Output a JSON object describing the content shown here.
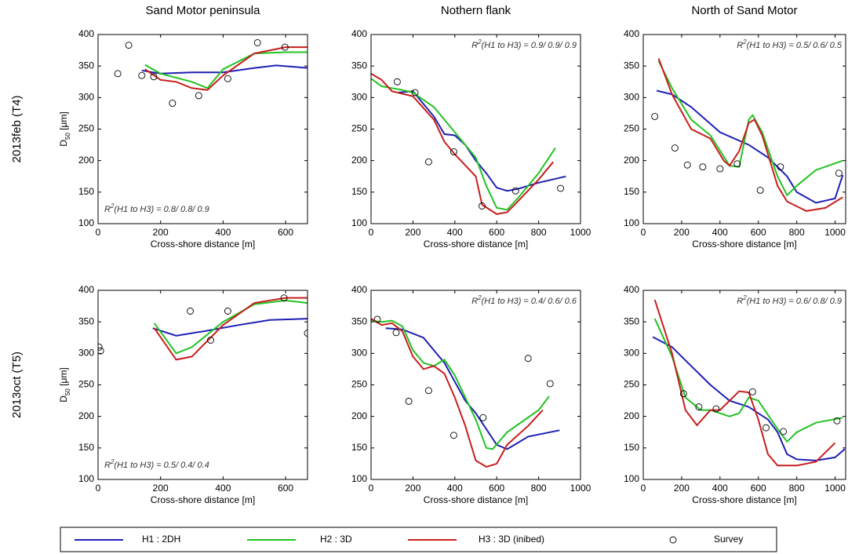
{
  "chart_data": [
    {
      "type": "line",
      "title": "Sand Motor peninsula",
      "row_label": "2013feb (T4)",
      "ylabel": [
        "D",
        "50",
        " [μm]"
      ],
      "xlabel": "Cross-shore distance [m]",
      "annotation": [
        "R",
        "2",
        "(H1 to H3) = 0.8/ 0.8/ 0.9"
      ],
      "annotation_corner": "lower left",
      "xlim": [
        0,
        670
      ],
      "ylim": [
        100,
        400
      ],
      "xticks": [
        0,
        200,
        400,
        600
      ],
      "yticks": [
        100,
        150,
        200,
        250,
        300,
        350,
        400
      ],
      "series": [
        {
          "name": "H1 : 2DH",
          "color": "#1f1fb4",
          "x": [
            140,
            200,
            300,
            400,
            500,
            570,
            670
          ],
          "values": [
            343,
            338,
            340,
            340,
            347,
            351,
            347
          ]
        },
        {
          "name": "H2 : 3D",
          "color": "#22c322",
          "x": [
            150,
            200,
            300,
            350,
            400,
            500,
            600,
            670
          ],
          "values": [
            352,
            338,
            325,
            315,
            345,
            370,
            372,
            372
          ]
        },
        {
          "name": "H3 : 3D (inibed)",
          "color": "#c81e1e",
          "x": [
            150,
            200,
            250,
            300,
            350,
            400,
            500,
            600,
            670
          ],
          "values": [
            345,
            328,
            325,
            315,
            312,
            335,
            370,
            380,
            380
          ]
        },
        {
          "name": "Survey",
          "type": "scatter",
          "color": "#000000",
          "x": [
            63,
            98,
            140,
            178,
            238,
            322,
            415,
            510,
            598
          ],
          "values": [
            338,
            383,
            335,
            333,
            291,
            303,
            330,
            387,
            380
          ]
        }
      ]
    },
    {
      "type": "line",
      "title": "Nothern flank",
      "xlabel": "Cross-shore distance [m]",
      "annotation": [
        "R",
        "2",
        "(H1 to H3) = 0.9/ 0.9/ 0.9"
      ],
      "annotation_corner": "upper right",
      "xlim": [
        0,
        1000
      ],
      "ylim": [
        100,
        400
      ],
      "xticks": [
        0,
        200,
        400,
        600,
        800,
        1000
      ],
      "yticks": [
        100,
        150,
        200,
        250,
        300,
        350,
        400
      ],
      "series": [
        {
          "color": "#1f1fb4",
          "x": [
            130,
            200,
            300,
            350,
            400,
            450,
            500,
            550,
            600,
            650,
            700,
            800,
            930
          ],
          "values": [
            308,
            310,
            270,
            242,
            240,
            225,
            200,
            180,
            157,
            152,
            155,
            165,
            175
          ]
        },
        {
          "color": "#22c322",
          "x": [
            0,
            50,
            150,
            200,
            300,
            400,
            500,
            550,
            600,
            650,
            700,
            800,
            880
          ],
          "values": [
            330,
            318,
            312,
            308,
            285,
            245,
            205,
            160,
            125,
            122,
            140,
            180,
            220
          ]
        },
        {
          "color": "#c81e1e",
          "x": [
            0,
            50,
            100,
            200,
            300,
            350,
            400,
            500,
            530,
            600,
            650,
            700,
            800,
            870
          ],
          "values": [
            338,
            328,
            310,
            302,
            265,
            230,
            210,
            175,
            130,
            115,
            118,
            135,
            170,
            198
          ]
        },
        {
          "type": "scatter",
          "color": "#000000",
          "x": [
            125,
            210,
            275,
            395,
            530,
            690,
            905
          ],
          "values": [
            325,
            308,
            198,
            214,
            128,
            152,
            156
          ]
        }
      ]
    },
    {
      "type": "line",
      "title": "North of Sand Motor",
      "xlabel": "Cross-shore distance [m]",
      "annotation": [
        "R",
        "2",
        "(H1 to H3) = 0.5/ 0.6/ 0.5"
      ],
      "annotation_corner": "upper right",
      "xlim": [
        0,
        1055
      ],
      "ylim": [
        100,
        400
      ],
      "xticks": [
        0,
        200,
        400,
        600,
        800,
        1000
      ],
      "yticks": [
        100,
        150,
        200,
        250,
        300,
        350,
        400
      ],
      "series": [
        {
          "color": "#1f1fb4",
          "x": [
            70,
            150,
            250,
            400,
            550,
            650,
            750,
            800,
            900,
            1000,
            1040
          ],
          "values": [
            311,
            305,
            285,
            245,
            225,
            205,
            175,
            150,
            133,
            140,
            177
          ]
        },
        {
          "color": "#22c322",
          "x": [
            80,
            150,
            250,
            350,
            450,
            500,
            550,
            570,
            620,
            700,
            750,
            800,
            900,
            1040
          ],
          "values": [
            358,
            315,
            265,
            240,
            192,
            190,
            265,
            272,
            245,
            175,
            145,
            160,
            185,
            200
          ]
        },
        {
          "color": "#c81e1e",
          "x": [
            80,
            150,
            250,
            350,
            420,
            450,
            500,
            550,
            580,
            620,
            700,
            750,
            850,
            950,
            1040
          ],
          "values": [
            362,
            305,
            250,
            235,
            200,
            192,
            215,
            260,
            265,
            240,
            160,
            135,
            120,
            125,
            142
          ]
        },
        {
          "type": "scatter",
          "color": "#000000",
          "x": [
            60,
            165,
            230,
            310,
            400,
            490,
            610,
            715,
            1020
          ],
          "values": [
            270,
            220,
            193,
            190,
            187,
            195,
            153,
            190,
            180
          ]
        }
      ]
    },
    {
      "type": "line",
      "row_label": "2013oct (T5)",
      "ylabel": [
        "D",
        "50",
        " [μm]"
      ],
      "xlabel": "Cross-shore distance [m]",
      "annotation": [
        "R",
        "2",
        "(H1 to H3) = 0.5/ 0.4/ 0.4"
      ],
      "annotation_corner": "lower left",
      "xlim": [
        0,
        670
      ],
      "ylim": [
        100,
        400
      ],
      "xticks": [
        0,
        200,
        400,
        600
      ],
      "yticks": [
        100,
        150,
        200,
        250,
        300,
        350,
        400
      ],
      "series": [
        {
          "color": "#1f1fb4",
          "x": [
            175,
            250,
            350,
            450,
            550,
            670
          ],
          "values": [
            340,
            328,
            336,
            345,
            353,
            355
          ]
        },
        {
          "color": "#22c322",
          "x": [
            180,
            250,
            300,
            400,
            500,
            600,
            670
          ],
          "values": [
            348,
            300,
            310,
            350,
            378,
            384,
            380
          ]
        },
        {
          "color": "#c81e1e",
          "x": [
            180,
            250,
            300,
            400,
            500,
            600,
            670
          ],
          "values": [
            340,
            290,
            295,
            345,
            380,
            388,
            388
          ]
        },
        {
          "type": "scatter",
          "color": "#000000",
          "x": [
            3,
            8,
            295,
            360,
            415,
            595,
            670
          ],
          "values": [
            310,
            304,
            367,
            321,
            367,
            388,
            332
          ]
        }
      ]
    },
    {
      "type": "line",
      "xlabel": "Cross-shore distance [m]",
      "annotation": [
        "R",
        "2",
        "(H1 to H3) = 0.4/ 0.6/ 0.6"
      ],
      "annotation_corner": "upper right",
      "xlim": [
        0,
        1000
      ],
      "ylim": [
        100,
        400
      ],
      "xticks": [
        0,
        200,
        400,
        600,
        800,
        1000
      ],
      "yticks": [
        100,
        150,
        200,
        250,
        300,
        350,
        400
      ],
      "series": [
        {
          "color": "#1f1fb4",
          "x": [
            70,
            150,
            250,
            350,
            450,
            500,
            600,
            650,
            750,
            900
          ],
          "values": [
            340,
            338,
            325,
            285,
            225,
            205,
            155,
            148,
            168,
            178
          ]
        },
        {
          "color": "#22c322",
          "x": [
            0,
            50,
            100,
            150,
            200,
            250,
            300,
            350,
            400,
            500,
            550,
            580,
            650,
            800,
            850
          ],
          "values": [
            352,
            350,
            352,
            343,
            305,
            285,
            280,
            290,
            265,
            195,
            150,
            148,
            175,
            210,
            232
          ]
        },
        {
          "color": "#c81e1e",
          "x": [
            0,
            50,
            100,
            150,
            200,
            250,
            300,
            350,
            400,
            450,
            500,
            550,
            600,
            650,
            750,
            820
          ],
          "values": [
            355,
            345,
            348,
            335,
            295,
            275,
            280,
            268,
            230,
            185,
            130,
            120,
            125,
            155,
            185,
            210
          ]
        },
        {
          "type": "scatter",
          "color": "#000000",
          "x": [
            30,
            120,
            180,
            275,
            395,
            535,
            750,
            855
          ],
          "values": [
            354,
            333,
            224,
            241,
            170,
            198,
            292,
            252
          ]
        }
      ]
    },
    {
      "type": "line",
      "xlabel": "Cross-shore distance [m]",
      "annotation": [
        "R",
        "2",
        "(H1 to H3) = 0.6/ 0.8/ 0.9"
      ],
      "annotation_corner": "upper right",
      "xlim": [
        0,
        1055
      ],
      "ylim": [
        100,
        400
      ],
      "xticks": [
        0,
        200,
        400,
        600,
        800,
        1000
      ],
      "yticks": [
        100,
        150,
        200,
        250,
        300,
        350,
        400
      ],
      "series": [
        {
          "color": "#1f1fb4",
          "x": [
            50,
            150,
            250,
            350,
            450,
            550,
            650,
            700,
            750,
            800,
            900,
            1000,
            1050
          ],
          "values": [
            326,
            310,
            280,
            250,
            225,
            215,
            195,
            175,
            140,
            132,
            130,
            135,
            148
          ]
        },
        {
          "color": "#22c322",
          "x": [
            60,
            150,
            220,
            300,
            350,
            400,
            450,
            500,
            550,
            600,
            700,
            750,
            800,
            900,
            1040
          ],
          "values": [
            355,
            295,
            230,
            210,
            210,
            205,
            200,
            205,
            230,
            225,
            180,
            160,
            175,
            190,
            198
          ]
        },
        {
          "color": "#c81e1e",
          "x": [
            60,
            150,
            220,
            280,
            350,
            400,
            450,
            500,
            550,
            600,
            650,
            700,
            800,
            900,
            1000
          ],
          "values": [
            385,
            300,
            210,
            186,
            210,
            210,
            225,
            240,
            238,
            195,
            140,
            122,
            122,
            128,
            158
          ]
        },
        {
          "type": "scatter",
          "color": "#000000",
          "x": [
            210,
            290,
            380,
            570,
            640,
            730,
            1010
          ],
          "values": [
            236,
            215,
            212,
            239,
            182,
            176,
            193
          ]
        }
      ]
    }
  ]
}
